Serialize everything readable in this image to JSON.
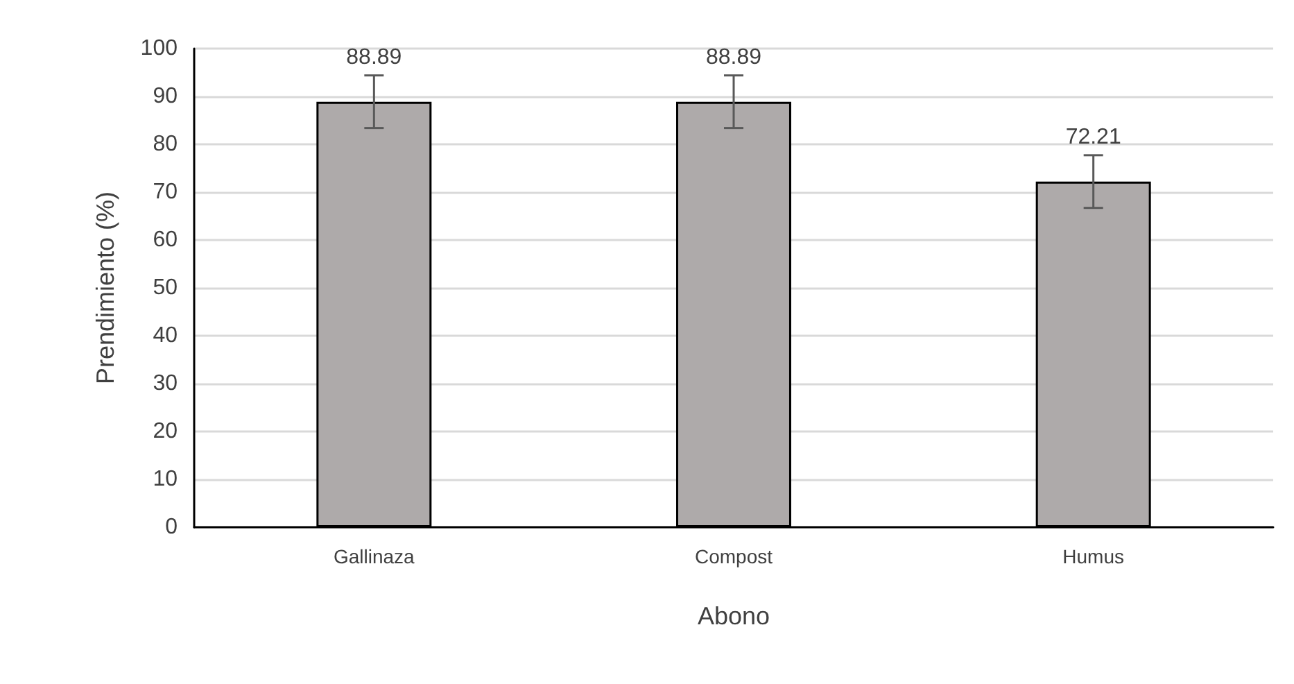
{
  "chart_data": {
    "type": "bar",
    "xlabel": "Abono",
    "ylabel": "Prendimiento (%)",
    "categories": [
      "Gallinaza",
      "Compost",
      "Humus"
    ],
    "values": [
      88.89,
      88.89,
      72.21
    ],
    "color": "#aeaaaa",
    "errors": [
      5.5,
      5.5,
      5.5
    ],
    "ylim": [
      0,
      100
    ],
    "yticks": [
      0,
      10,
      20,
      30,
      40,
      50,
      60,
      70,
      80,
      90,
      100
    ],
    "grid": "y",
    "data_labels": true
  }
}
